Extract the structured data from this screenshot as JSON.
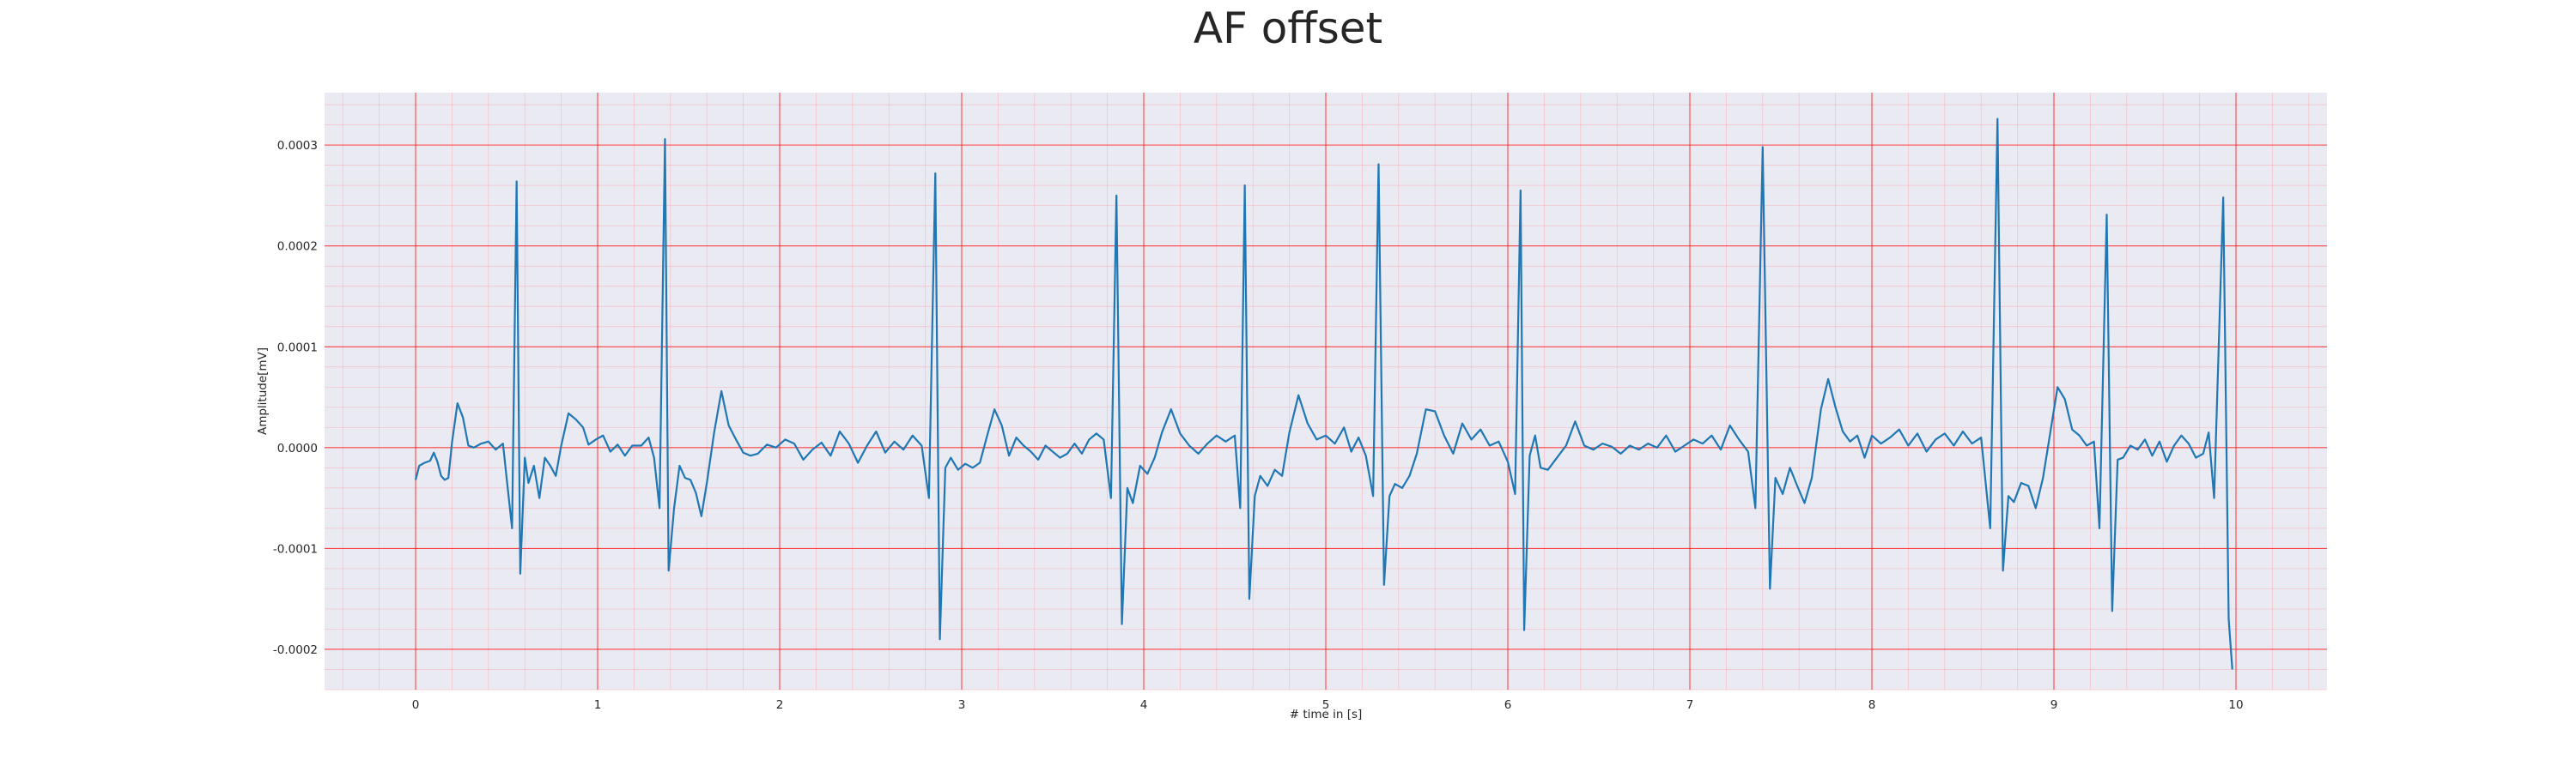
{
  "chart_data": {
    "type": "line",
    "title": "AF offset",
    "xlabel": "# time in [s]",
    "ylabel": "Amplitude[mV]",
    "xlim": [
      -0.5,
      10.5
    ],
    "ylim": [
      -0.00024,
      0.000352
    ],
    "xticks": [
      0,
      1,
      2,
      3,
      4,
      5,
      6,
      7,
      8,
      9,
      10
    ],
    "xtick_labels": [
      "0",
      "1",
      "2",
      "3",
      "4",
      "5",
      "6",
      "7",
      "8",
      "9",
      "10"
    ],
    "yticks": [
      -0.0002,
      -0.0001,
      0.0,
      0.0001,
      0.0002,
      0.0003
    ],
    "ytick_labels": [
      "-0.0002",
      "-0.0001",
      "0.0000",
      "0.0001",
      "0.0002",
      "0.0003"
    ],
    "grid": true,
    "minor_grid": true,
    "legend": "none",
    "series": [
      {
        "color": "#1f77b4",
        "points": [
          [
            0.0,
            -3.2e-05
          ],
          [
            0.02,
            -1.8e-05
          ],
          [
            0.05,
            -1.5e-05
          ],
          [
            0.08,
            -1.3e-05
          ],
          [
            0.1,
            -5e-06
          ],
          [
            0.12,
            -1.4e-05
          ],
          [
            0.14,
            -2.8e-05
          ],
          [
            0.16,
            -3.2e-05
          ],
          [
            0.18,
            -3e-05
          ],
          [
            0.2,
            5e-06
          ],
          [
            0.23,
            4.4e-05
          ],
          [
            0.26,
            3e-05
          ],
          [
            0.29,
            2e-06
          ],
          [
            0.32,
            0.0
          ],
          [
            0.36,
            4e-06
          ],
          [
            0.4,
            6e-06
          ],
          [
            0.44,
            -2e-06
          ],
          [
            0.48,
            4e-06
          ],
          [
            0.5,
            -3e-05
          ],
          [
            0.53,
            -8e-05
          ],
          [
            0.555,
            0.000264
          ],
          [
            0.575,
            -0.000125
          ],
          [
            0.6,
            -1e-05
          ],
          [
            0.62,
            -3.5e-05
          ],
          [
            0.65,
            -1.8e-05
          ],
          [
            0.68,
            -5e-05
          ],
          [
            0.71,
            -1e-05
          ],
          [
            0.74,
            -1.8e-05
          ],
          [
            0.77,
            -2.8e-05
          ],
          [
            0.8,
            2e-06
          ],
          [
            0.84,
            3.4e-05
          ],
          [
            0.88,
            2.8e-05
          ],
          [
            0.92,
            2e-05
          ],
          [
            0.95,
            3e-06
          ],
          [
            0.99,
            8e-06
          ],
          [
            1.03,
            1.2e-05
          ],
          [
            1.07,
            -4e-06
          ],
          [
            1.11,
            3e-06
          ],
          [
            1.15,
            -8e-06
          ],
          [
            1.19,
            2e-06
          ],
          [
            1.24,
            2e-06
          ],
          [
            1.28,
            1e-05
          ],
          [
            1.31,
            -1e-05
          ],
          [
            1.34,
            -6e-05
          ],
          [
            1.37,
            0.000306
          ],
          [
            1.39,
            -0.000122
          ],
          [
            1.42,
            -6e-05
          ],
          [
            1.45,
            -1.8e-05
          ],
          [
            1.48,
            -3e-05
          ],
          [
            1.51,
            -3.2e-05
          ],
          [
            1.54,
            -4.5e-05
          ],
          [
            1.57,
            -6.8e-05
          ],
          [
            1.6,
            -3.5e-05
          ],
          [
            1.64,
            1.5e-05
          ],
          [
            1.68,
            5.6e-05
          ],
          [
            1.72,
            2.2e-05
          ],
          [
            1.76,
            8e-06
          ],
          [
            1.8,
            -5e-06
          ],
          [
            1.84,
            -8e-06
          ],
          [
            1.88,
            -6e-06
          ],
          [
            1.93,
            3e-06
          ],
          [
            1.98,
            0.0
          ],
          [
            2.03,
            8e-06
          ],
          [
            2.08,
            4e-06
          ],
          [
            2.13,
            -1.2e-05
          ],
          [
            2.18,
            -2e-06
          ],
          [
            2.23,
            5e-06
          ],
          [
            2.28,
            -8e-06
          ],
          [
            2.33,
            1.6e-05
          ],
          [
            2.38,
            4e-06
          ],
          [
            2.43,
            -1.5e-05
          ],
          [
            2.48,
            2e-06
          ],
          [
            2.53,
            1.6e-05
          ],
          [
            2.58,
            -5e-06
          ],
          [
            2.63,
            6e-06
          ],
          [
            2.68,
            -2e-06
          ],
          [
            2.73,
            1.2e-05
          ],
          [
            2.78,
            2e-06
          ],
          [
            2.82,
            -5e-05
          ],
          [
            2.855,
            0.000272
          ],
          [
            2.88,
            -0.00019
          ],
          [
            2.91,
            -2e-05
          ],
          [
            2.94,
            -1e-05
          ],
          [
            2.98,
            -2.2e-05
          ],
          [
            3.02,
            -1.6e-05
          ],
          [
            3.06,
            -2e-05
          ],
          [
            3.1,
            -1.5e-05
          ],
          [
            3.14,
            1.2e-05
          ],
          [
            3.18,
            3.8e-05
          ],
          [
            3.22,
            2.2e-05
          ],
          [
            3.26,
            -8e-06
          ],
          [
            3.3,
            1e-05
          ],
          [
            3.34,
            2e-06
          ],
          [
            3.38,
            -4e-06
          ],
          [
            3.42,
            -1.2e-05
          ],
          [
            3.46,
            2e-06
          ],
          [
            3.5,
            -4e-06
          ],
          [
            3.54,
            -1e-05
          ],
          [
            3.58,
            -6e-06
          ],
          [
            3.62,
            4e-06
          ],
          [
            3.66,
            -6e-06
          ],
          [
            3.7,
            8e-06
          ],
          [
            3.74,
            1.4e-05
          ],
          [
            3.78,
            8e-06
          ],
          [
            3.82,
            -5e-05
          ],
          [
            3.85,
            0.00025
          ],
          [
            3.88,
            -0.000175
          ],
          [
            3.91,
            -4e-05
          ],
          [
            3.94,
            -5.5e-05
          ],
          [
            3.98,
            -1.8e-05
          ],
          [
            4.02,
            -2.6e-05
          ],
          [
            4.06,
            -1e-05
          ],
          [
            4.1,
            1.5e-05
          ],
          [
            4.15,
            3.8e-05
          ],
          [
            4.2,
            1.4e-05
          ],
          [
            4.25,
            2e-06
          ],
          [
            4.3,
            -6e-06
          ],
          [
            4.35,
            4e-06
          ],
          [
            4.4,
            1.2e-05
          ],
          [
            4.45,
            6e-06
          ],
          [
            4.5,
            1.2e-05
          ],
          [
            4.53,
            -6e-05
          ],
          [
            4.555,
            0.00026
          ],
          [
            4.58,
            -0.00015
          ],
          [
            4.61,
            -4.8e-05
          ],
          [
            4.64,
            -2.8e-05
          ],
          [
            4.68,
            -3.8e-05
          ],
          [
            4.72,
            -2.2e-05
          ],
          [
            4.76,
            -2.8e-05
          ],
          [
            4.8,
            1.5e-05
          ],
          [
            4.85,
            5.2e-05
          ],
          [
            4.9,
            2.4e-05
          ],
          [
            4.95,
            8e-06
          ],
          [
            5.0,
            1.2e-05
          ],
          [
            5.05,
            4e-06
          ],
          [
            5.1,
            2e-05
          ],
          [
            5.14,
            -4e-06
          ],
          [
            5.18,
            1e-05
          ],
          [
            5.22,
            -8e-06
          ],
          [
            5.26,
            -4.8e-05
          ],
          [
            5.29,
            0.000281
          ],
          [
            5.32,
            -0.000136
          ],
          [
            5.35,
            -4.8e-05
          ],
          [
            5.38,
            -3.6e-05
          ],
          [
            5.42,
            -4e-05
          ],
          [
            5.46,
            -2.8e-05
          ],
          [
            5.5,
            -6e-06
          ],
          [
            5.55,
            3.8e-05
          ],
          [
            5.6,
            3.6e-05
          ],
          [
            5.65,
            1.2e-05
          ],
          [
            5.7,
            -6e-06
          ],
          [
            5.75,
            2.4e-05
          ],
          [
            5.8,
            8e-06
          ],
          [
            5.85,
            1.8e-05
          ],
          [
            5.9,
            2e-06
          ],
          [
            5.95,
            6e-06
          ],
          [
            6.0,
            -1.4e-05
          ],
          [
            6.04,
            -4.6e-05
          ],
          [
            6.07,
            0.000255
          ],
          [
            6.09,
            -0.000181
          ],
          [
            6.12,
            -8e-06
          ],
          [
            6.15,
            1.2e-05
          ],
          [
            6.18,
            -2e-05
          ],
          [
            6.22,
            -2.2e-05
          ],
          [
            6.27,
            -1e-05
          ],
          [
            6.32,
            2e-06
          ],
          [
            6.37,
            2.6e-05
          ],
          [
            6.42,
            2e-06
          ],
          [
            6.47,
            -2e-06
          ],
          [
            6.52,
            4e-06
          ],
          [
            6.57,
            1e-06
          ],
          [
            6.62,
            -6e-06
          ],
          [
            6.67,
            2e-06
          ],
          [
            6.72,
            -2e-06
          ],
          [
            6.77,
            4e-06
          ],
          [
            6.82,
            0.0
          ],
          [
            6.87,
            1.2e-05
          ],
          [
            6.92,
            -4e-06
          ],
          [
            6.97,
            2e-06
          ],
          [
            7.02,
            8e-06
          ],
          [
            7.07,
            4e-06
          ],
          [
            7.12,
            1.2e-05
          ],
          [
            7.17,
            -2e-06
          ],
          [
            7.22,
            2.2e-05
          ],
          [
            7.27,
            8e-06
          ],
          [
            7.32,
            -4e-06
          ],
          [
            7.36,
            -6e-05
          ],
          [
            7.4,
            0.000298
          ],
          [
            7.44,
            -0.00014
          ],
          [
            7.47,
            -3e-05
          ],
          [
            7.51,
            -4.6e-05
          ],
          [
            7.55,
            -2e-05
          ],
          [
            7.59,
            -3.8e-05
          ],
          [
            7.63,
            -5.5e-05
          ],
          [
            7.67,
            -3e-05
          ],
          [
            7.72,
            3.8e-05
          ],
          [
            7.76,
            6.8e-05
          ],
          [
            7.8,
            4e-05
          ],
          [
            7.84,
            1.6e-05
          ],
          [
            7.88,
            6e-06
          ],
          [
            7.92,
            1.2e-05
          ],
          [
            7.96,
            -1e-05
          ],
          [
            8.0,
            1.2e-05
          ],
          [
            8.05,
            4e-06
          ],
          [
            8.1,
            1e-05
          ],
          [
            8.15,
            1.8e-05
          ],
          [
            8.2,
            2e-06
          ],
          [
            8.25,
            1.4e-05
          ],
          [
            8.3,
            -4e-06
          ],
          [
            8.35,
            8e-06
          ],
          [
            8.4,
            1.4e-05
          ],
          [
            8.45,
            2e-06
          ],
          [
            8.5,
            1.6e-05
          ],
          [
            8.55,
            4e-06
          ],
          [
            8.6,
            1e-05
          ],
          [
            8.65,
            -8e-05
          ],
          [
            8.69,
            0.000326
          ],
          [
            8.72,
            -0.000122
          ],
          [
            8.75,
            -4.8e-05
          ],
          [
            8.78,
            -5.4e-05
          ],
          [
            8.82,
            -3.5e-05
          ],
          [
            8.86,
            -3.8e-05
          ],
          [
            8.9,
            -6e-05
          ],
          [
            8.94,
            -3e-05
          ],
          [
            8.98,
            1.5e-05
          ],
          [
            9.02,
            6e-05
          ],
          [
            9.06,
            4.8e-05
          ],
          [
            9.1,
            1.8e-05
          ],
          [
            9.14,
            1.2e-05
          ],
          [
            9.18,
            2e-06
          ],
          [
            9.22,
            6e-06
          ],
          [
            9.25,
            -8e-05
          ],
          [
            9.29,
            0.000231
          ],
          [
            9.32,
            -0.000162
          ],
          [
            9.35,
            -1.2e-05
          ],
          [
            9.38,
            -1e-05
          ],
          [
            9.42,
            2e-06
          ],
          [
            9.46,
            -2e-06
          ],
          [
            9.5,
            8e-06
          ],
          [
            9.54,
            -8e-06
          ],
          [
            9.58,
            6e-06
          ],
          [
            9.62,
            -1.4e-05
          ],
          [
            9.66,
            2e-06
          ],
          [
            9.7,
            1.2e-05
          ],
          [
            9.74,
            4e-06
          ],
          [
            9.78,
            -1e-05
          ],
          [
            9.82,
            -6e-06
          ],
          [
            9.85,
            1.5e-05
          ],
          [
            9.88,
            -5e-05
          ],
          [
            9.93,
            0.000248
          ],
          [
            9.96,
            -0.00017
          ],
          [
            9.98,
            -0.00022
          ]
        ]
      }
    ]
  }
}
